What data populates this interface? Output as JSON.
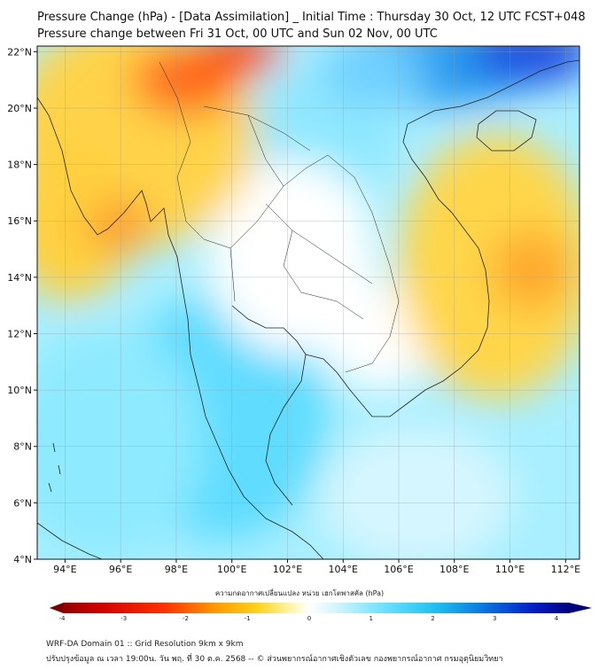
{
  "title_line1": "Pressure Change (hPa) - [Data Assimilation] _ Initial Time : Thursday 30 Oct, 12 UTC FCST+048",
  "title_line2": "Pressure change between Fri 31 Oct, 00 UTC and Sun 02 Nov, 00 UTC",
  "map": {
    "lon_range": [
      93,
      112.5
    ],
    "lat_range": [
      4,
      22.2
    ],
    "lon_ticks": [
      "94°E",
      "96°E",
      "98°E",
      "100°E",
      "102°E",
      "104°E",
      "106°E",
      "108°E",
      "110°E",
      "112°E"
    ],
    "lon_values": [
      94,
      96,
      98,
      100,
      102,
      104,
      106,
      108,
      110,
      112
    ],
    "lat_ticks": [
      "4°N",
      "6°N",
      "8°N",
      "10°N",
      "12°N",
      "14°N",
      "16°N",
      "18°N",
      "20°N",
      "22°N"
    ],
    "lat_values": [
      4,
      6,
      8,
      10,
      12,
      14,
      16,
      18,
      20,
      22
    ],
    "gridlines": true
  },
  "colorbar": {
    "title": "ความกดอากาศเปลี่ยนแปลง หน่วย เฮกโตพาสคัล (hPa)",
    "min": -4,
    "max": 4,
    "tick_labels": [
      "-4",
      "-3",
      "-2",
      "-1",
      "0",
      "1",
      "2",
      "3",
      "4"
    ],
    "colors": {
      "low": "#7a0000",
      "mid": "#ffffff",
      "high": "#000080"
    }
  },
  "footer_line1": "WRF-DA Domain 01 :: Grid Resolution 9km x 9km",
  "footer_line2": "ปรับปรุงข้อมูล ณ เวลา 19:00น. วัน พฤ. ที่ 30 ต.ค. 2568 -- © ส่วนพยากรณ์อากาศเชิงตัวเลข กองพยากรณ์อากาศ กรมอุตุนิยมวิทยา"
}
